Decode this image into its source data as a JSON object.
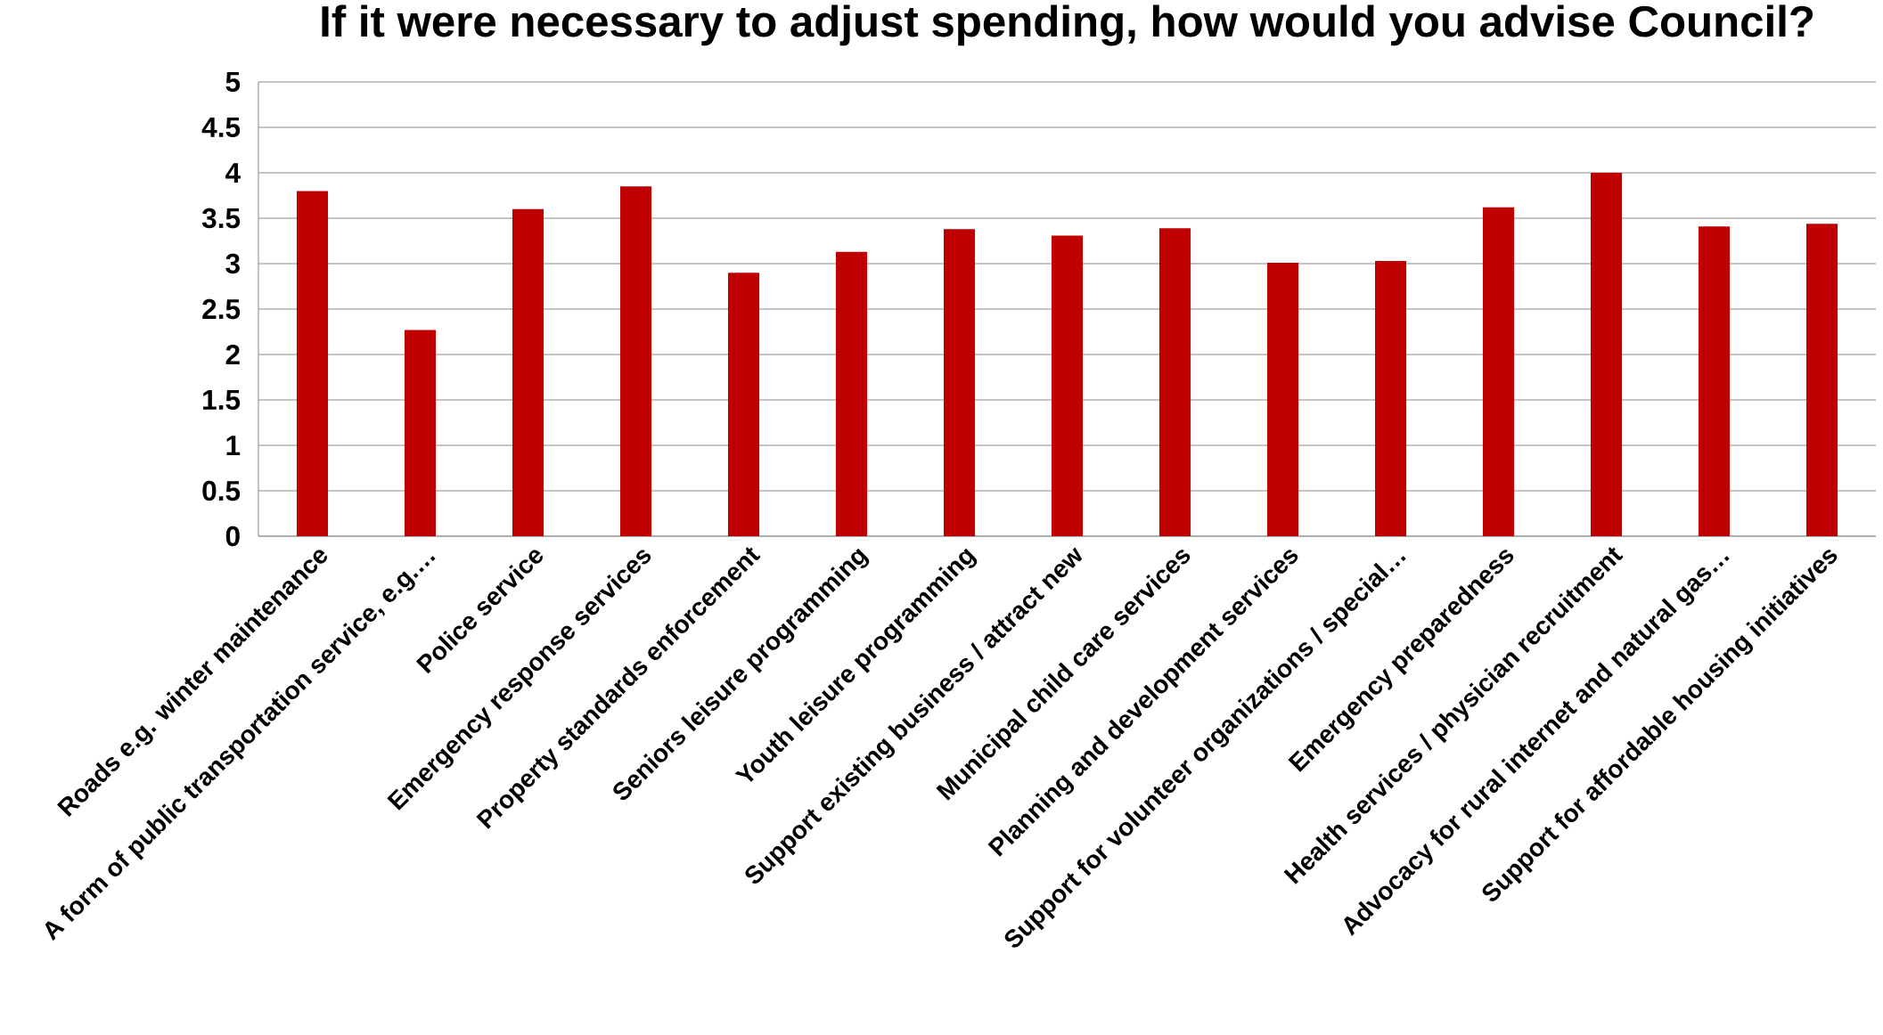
{
  "chart_data": {
    "type": "bar",
    "title": "If it were necessary to adjust spending, how would you advise Council?",
    "categories": [
      "Roads e.g. winter maintenance",
      "A form of public transportation service, e.g.…",
      "Police service",
      "Emergency response services",
      "Property standards enforcement",
      "Seniors leisure programming",
      "Youth leisure programming",
      "Support existing business / attract new",
      "Municipal child care services",
      "Planning and development services",
      "Support for volunteer organizations / special…",
      "Emergency preparedness",
      "Health services / physician recruitment",
      "Advocacy for rural internet and natural gas…",
      "Support for affordable housing initiatives"
    ],
    "values": [
      3.8,
      2.27,
      3.6,
      3.85,
      2.9,
      3.13,
      3.38,
      3.31,
      3.39,
      3.01,
      3.03,
      3.62,
      4.0,
      3.41,
      3.44
    ],
    "color": "#c00000",
    "ylim": [
      0,
      5
    ],
    "yticks": [
      0,
      0.5,
      1,
      1.5,
      2,
      2.5,
      3,
      3.5,
      4,
      4.5,
      5
    ],
    "grid": "y"
  }
}
